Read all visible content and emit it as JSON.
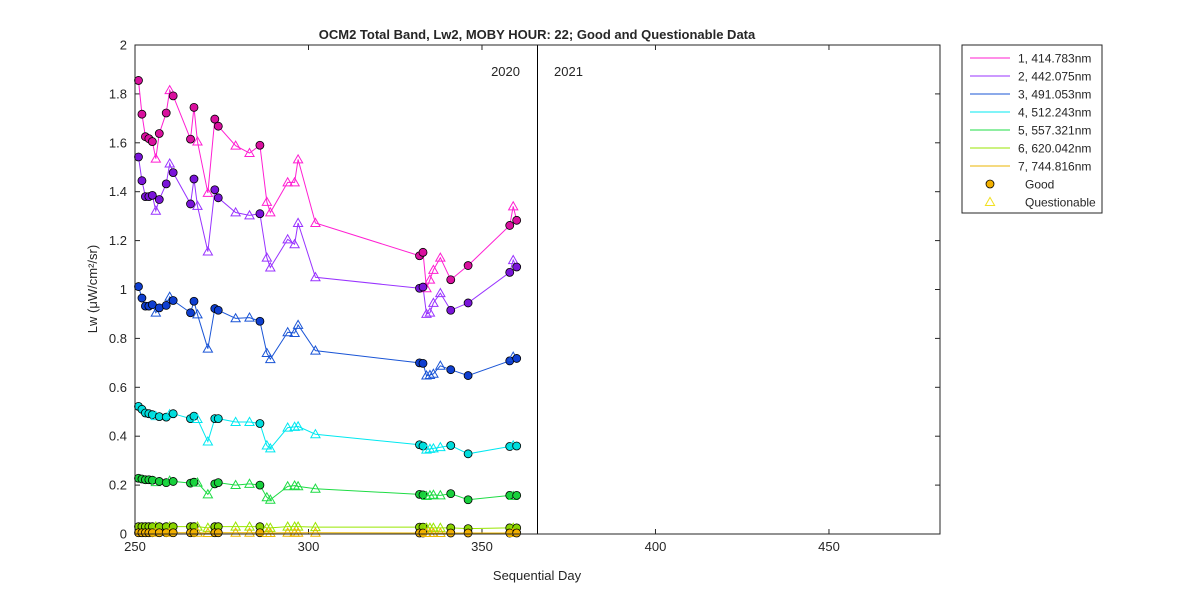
{
  "chart_data": {
    "type": "line",
    "title": "OCM2 Total Band,  Lw2, MOBY HOUR: 22;  Good and Questionable Data",
    "xlabel": "Sequential Day",
    "ylabel": "Lw (μW/cm²/sr)",
    "xlim": [
      250,
      482
    ],
    "ylim": [
      0,
      2
    ],
    "xticks": [
      250,
      300,
      350,
      400,
      450
    ],
    "yticks": [
      0,
      0.2,
      0.4,
      0.6,
      0.8,
      1,
      1.2,
      1.4,
      1.6,
      1.8,
      2
    ],
    "year_divider": 366,
    "year_labels": [
      "2020",
      "2021"
    ],
    "grid": false,
    "legend_position": "outside-right",
    "days": [
      251,
      252,
      253,
      254,
      255,
      256,
      257,
      259,
      260,
      261,
      266,
      267,
      268,
      271,
      273,
      274,
      279,
      283,
      286,
      288,
      289,
      294,
      296,
      297,
      302,
      332,
      333,
      334,
      335,
      336,
      338,
      341,
      346,
      358,
      359,
      360
    ],
    "quality": [
      "G",
      "G",
      "G",
      "G",
      "G",
      "Q",
      "G",
      "G",
      "Q",
      "G",
      "G",
      "G",
      "Q",
      "Q",
      "G",
      "G",
      "Q",
      "Q",
      "G",
      "Q",
      "Q",
      "Q",
      "Q",
      "Q",
      "Q",
      "G",
      "G",
      "Q",
      "Q",
      "Q",
      "Q",
      "G",
      "G",
      "G",
      "Q",
      "G"
    ],
    "series": [
      {
        "name": "1, 414.783nm",
        "color": "#ff1fd2",
        "marker_color": "#d9109e",
        "values": [
          1.855,
          1.717,
          1.625,
          1.617,
          1.605,
          1.535,
          1.638,
          1.722,
          1.815,
          1.792,
          1.615,
          1.745,
          1.605,
          1.395,
          1.697,
          1.668,
          1.588,
          1.558,
          1.59,
          1.358,
          1.315,
          1.438,
          1.438,
          1.532,
          1.272,
          1.138,
          1.152,
          1.005,
          1.04,
          1.08,
          1.13,
          1.04,
          1.098,
          1.262,
          1.34,
          1.283
        ]
      },
      {
        "name": "2, 442.075nm",
        "color": "#9933ff",
        "marker_color": "#7a14d9",
        "values": [
          1.542,
          1.445,
          1.38,
          1.38,
          1.385,
          1.322,
          1.368,
          1.432,
          1.515,
          1.478,
          1.35,
          1.452,
          1.342,
          1.155,
          1.408,
          1.375,
          1.315,
          1.303,
          1.31,
          1.13,
          1.09,
          1.205,
          1.185,
          1.272,
          1.05,
          1.005,
          1.01,
          0.9,
          0.905,
          0.945,
          0.985,
          0.915,
          0.945,
          1.07,
          1.12,
          1.092
        ]
      },
      {
        "name": "3, 491.053nm",
        "color": "#1a55d6",
        "marker_color": "#0f3fd0",
        "values": [
          1.012,
          0.965,
          0.932,
          0.932,
          0.938,
          0.905,
          0.925,
          0.935,
          0.97,
          0.955,
          0.905,
          0.952,
          0.898,
          0.758,
          0.922,
          0.915,
          0.882,
          0.885,
          0.87,
          0.74,
          0.715,
          0.825,
          0.822,
          0.855,
          0.75,
          0.7,
          0.698,
          0.648,
          0.65,
          0.655,
          0.688,
          0.672,
          0.648,
          0.708,
          0.725,
          0.718
        ]
      },
      {
        "name": "4, 512.243nm",
        "color": "#00e8f0",
        "marker_color": "#00dcdc",
        "values": [
          0.522,
          0.51,
          0.495,
          0.492,
          0.488,
          0.482,
          0.48,
          0.478,
          0.49,
          0.492,
          0.472,
          0.482,
          0.47,
          0.378,
          0.472,
          0.472,
          0.458,
          0.458,
          0.452,
          0.362,
          0.35,
          0.435,
          0.438,
          0.44,
          0.408,
          0.365,
          0.36,
          0.345,
          0.348,
          0.35,
          0.355,
          0.362,
          0.328,
          0.358,
          0.362,
          0.36
        ]
      },
      {
        "name": "5, 557.321nm",
        "color": "#1fdc45",
        "marker_color": "#18d03c",
        "values": [
          0.228,
          0.225,
          0.222,
          0.222,
          0.22,
          0.212,
          0.215,
          0.21,
          0.218,
          0.215,
          0.208,
          0.212,
          0.21,
          0.162,
          0.205,
          0.21,
          0.2,
          0.205,
          0.2,
          0.15,
          0.14,
          0.195,
          0.198,
          0.195,
          0.185,
          0.162,
          0.16,
          0.155,
          0.158,
          0.16,
          0.158,
          0.165,
          0.14,
          0.158,
          0.155,
          0.158
        ]
      },
      {
        "name": "6, 620.042nm",
        "color": "#99e600",
        "marker_color": "#8ad400",
        "values": [
          0.03,
          0.03,
          0.03,
          0.03,
          0.03,
          0.03,
          0.03,
          0.03,
          0.03,
          0.03,
          0.03,
          0.03,
          0.03,
          0.025,
          0.03,
          0.03,
          0.03,
          0.03,
          0.03,
          0.025,
          0.025,
          0.03,
          0.03,
          0.03,
          0.028,
          0.028,
          0.028,
          0.025,
          0.025,
          0.025,
          0.025,
          0.025,
          0.022,
          0.025,
          0.025,
          0.025
        ]
      },
      {
        "name": "7, 744.816nm",
        "color": "#ebb400",
        "marker_color": "#f2b000",
        "values": [
          0.005,
          0.005,
          0.005,
          0.005,
          0.005,
          0.005,
          0.005,
          0.005,
          0.005,
          0.005,
          0.005,
          0.005,
          0.005,
          0.004,
          0.005,
          0.005,
          0.005,
          0.005,
          0.005,
          0.004,
          0.004,
          0.005,
          0.005,
          0.005,
          0.005,
          0.004,
          0.004,
          0.004,
          0.004,
          0.004,
          0.004,
          0.004,
          0.004,
          0.004,
          0.004,
          0.004
        ]
      }
    ],
    "legend_markers": [
      {
        "label": "Good",
        "shape": "circle",
        "color": "#f2b000"
      },
      {
        "label": "Questionable",
        "shape": "triangle",
        "color": "#f2e020"
      }
    ]
  }
}
